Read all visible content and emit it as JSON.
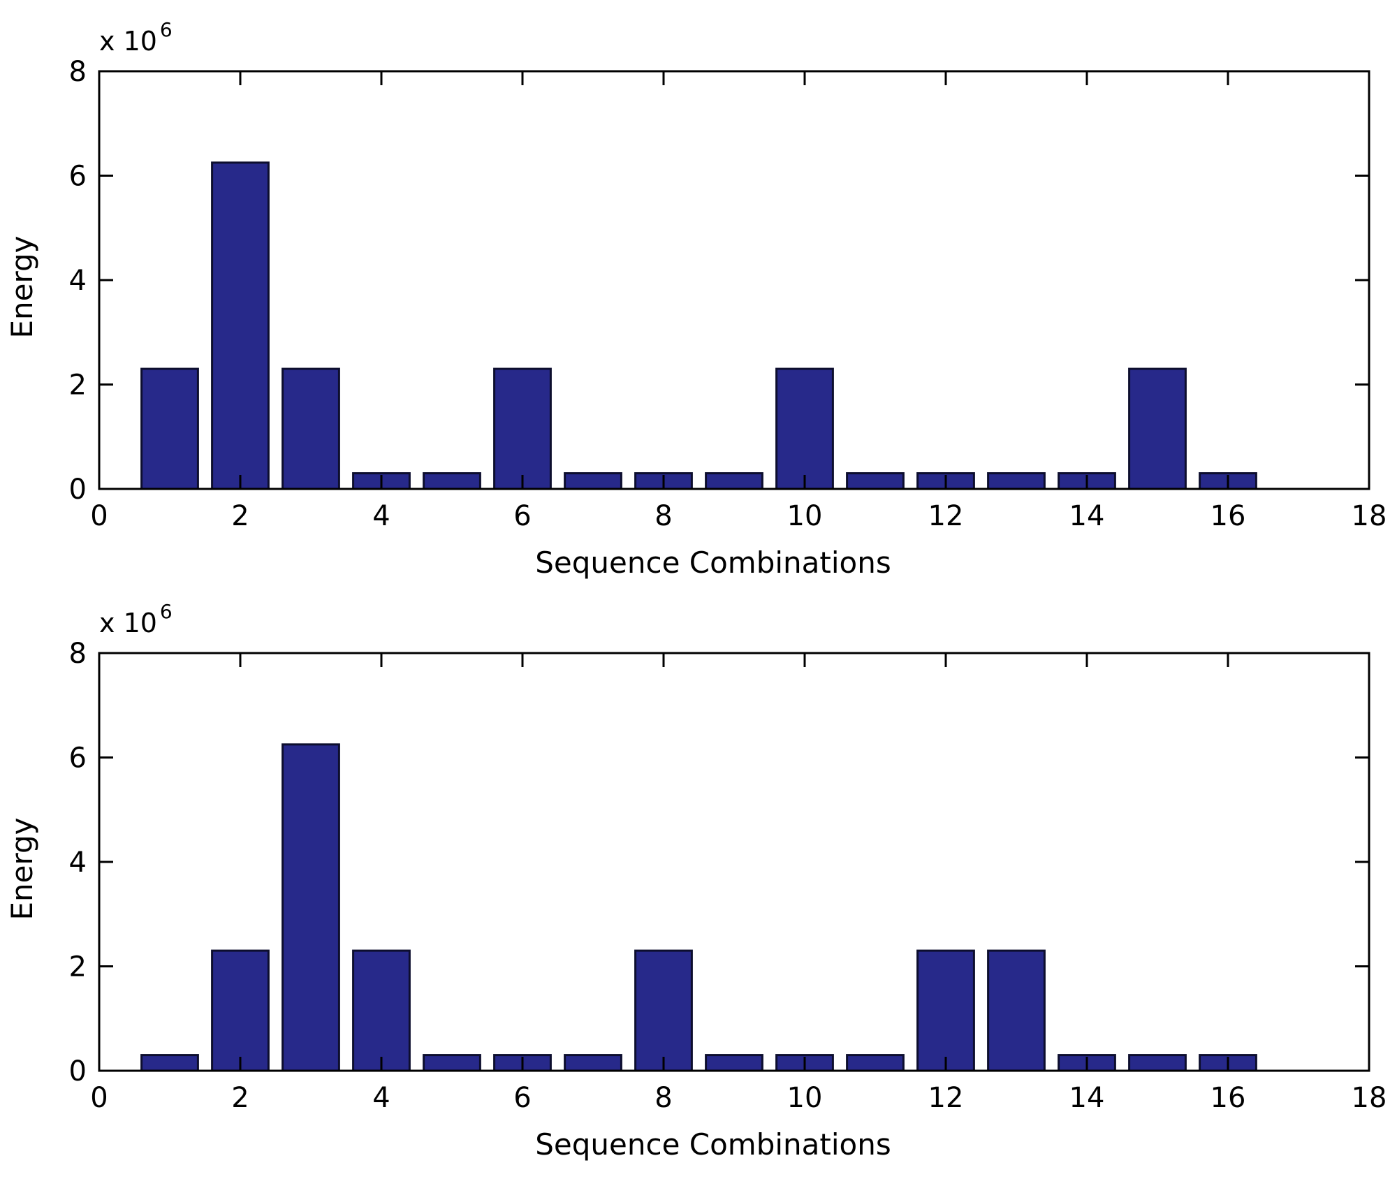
{
  "colors": {
    "bar_fill": "#27298a",
    "bar_edge": "#0d0e2e",
    "axis": "#000000",
    "background": "#ffffff"
  },
  "chart_data": [
    {
      "type": "bar",
      "xlabel": "Sequence Combinations",
      "ylabel": "Energy",
      "exponent_label": "x 10",
      "exponent_power": "6",
      "xlim": [
        0,
        18
      ],
      "ylim": [
        0,
        8
      ],
      "x_ticks": [
        "0",
        "2",
        "4",
        "6",
        "8",
        "10",
        "12",
        "14",
        "16",
        "18"
      ],
      "y_ticks": [
        "0",
        "2",
        "4",
        "6",
        "8"
      ],
      "grid": false,
      "x": [
        1,
        2,
        3,
        4,
        5,
        6,
        7,
        8,
        9,
        10,
        11,
        12,
        13,
        14,
        15,
        16
      ],
      "values": [
        2.3,
        6.25,
        2.3,
        0.3,
        0.3,
        2.3,
        0.3,
        0.3,
        0.3,
        2.3,
        0.3,
        0.3,
        0.3,
        0.3,
        2.3,
        0.3
      ]
    },
    {
      "type": "bar",
      "xlabel": "Sequence Combinations",
      "ylabel": "Energy",
      "exponent_label": "x 10",
      "exponent_power": "6",
      "xlim": [
        0,
        18
      ],
      "ylim": [
        0,
        8
      ],
      "x_ticks": [
        "0",
        "2",
        "4",
        "6",
        "8",
        "10",
        "12",
        "14",
        "16",
        "18"
      ],
      "y_ticks": [
        "0",
        "2",
        "4",
        "6",
        "8"
      ],
      "grid": false,
      "x": [
        1,
        2,
        3,
        4,
        5,
        6,
        7,
        8,
        9,
        10,
        11,
        12,
        13,
        14,
        15,
        16
      ],
      "values": [
        0.3,
        2.3,
        6.25,
        2.3,
        0.3,
        0.3,
        0.3,
        2.3,
        0.3,
        0.3,
        0.3,
        2.3,
        2.3,
        0.3,
        0.3,
        0.3
      ]
    }
  ]
}
